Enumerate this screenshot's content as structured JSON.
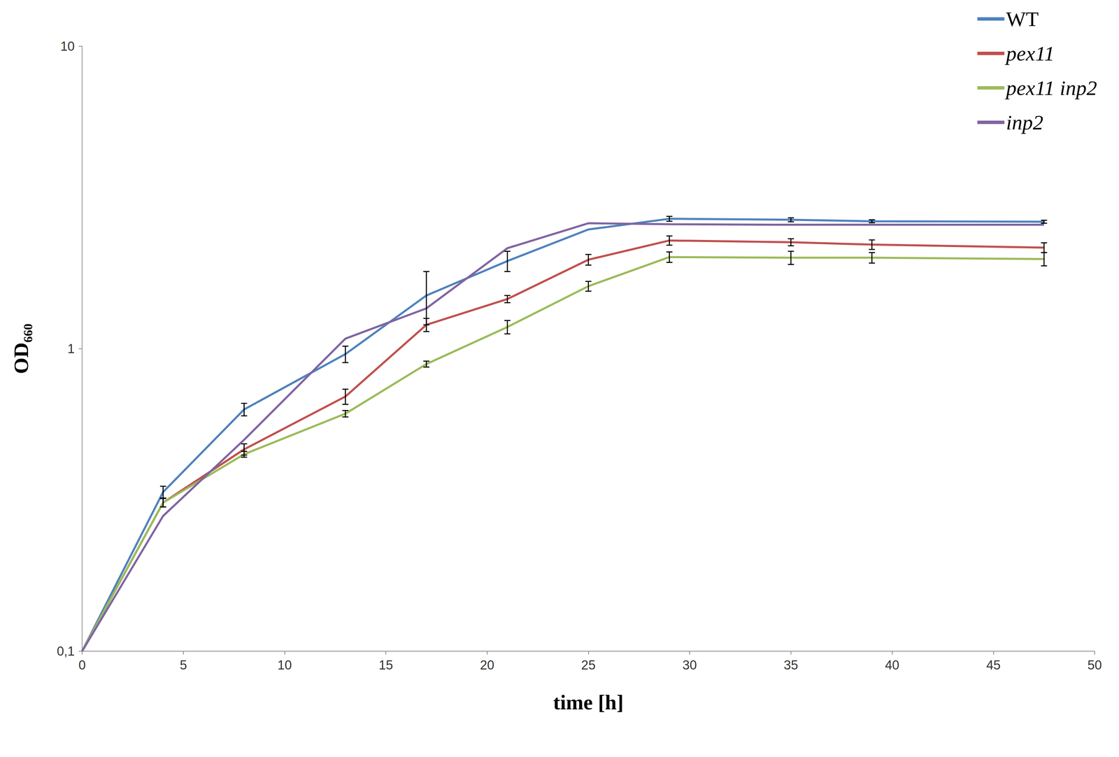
{
  "chart_data": {
    "type": "line",
    "x_label": "time [h]",
    "y_label": "OD₆₆₀",
    "x": [
      0,
      4,
      8,
      13,
      17,
      21,
      25,
      29,
      35,
      39,
      47.5
    ],
    "series": [
      {
        "name": "WT",
        "color": "#4f81bd",
        "values": [
          0.1,
          0.336,
          0.63,
          0.96,
          1.5,
          1.95,
          2.48,
          2.69,
          2.67,
          2.64,
          2.63
        ],
        "errors": [
          null,
          0.015,
          0.03,
          0.06,
          0.3,
          0.15,
          null,
          0.05,
          0.04,
          0.03,
          0.03
        ]
      },
      {
        "name": "pex11",
        "color": "#c0504d",
        "values": [
          0.1,
          0.31,
          0.465,
          0.695,
          1.2,
          1.46,
          1.97,
          2.28,
          2.25,
          2.21,
          2.16
        ],
        "errors": [
          null,
          0.01,
          0.02,
          0.04,
          0.06,
          0.04,
          0.08,
          0.08,
          0.06,
          0.08,
          0.08
        ]
      },
      {
        "name": "pex11 inp2",
        "color": "#9bbb59",
        "values": [
          0.1,
          0.31,
          0.448,
          0.61,
          0.89,
          1.18,
          1.61,
          2.01,
          2.0,
          2.0,
          1.98
        ],
        "errors": [
          null,
          0.01,
          0.01,
          0.015,
          0.02,
          0.06,
          0.06,
          0.08,
          0.1,
          0.08,
          0.1
        ]
      },
      {
        "name": "inp2",
        "color": "#8064a2",
        "values": [
          0.1,
          0.28,
          0.5,
          1.08,
          1.36,
          2.15,
          2.6,
          2.58,
          2.57,
          2.57,
          2.57
        ]
      }
    ],
    "xlim": [
      0,
      50
    ],
    "xticks": [
      0,
      5,
      10,
      15,
      20,
      25,
      30,
      35,
      40,
      45,
      50
    ],
    "ylim": [
      0.1,
      10
    ],
    "yticks": [
      {
        "value": 0.1,
        "label": "0,1"
      },
      1,
      10
    ],
    "log": "y",
    "grid": false,
    "legend": "top-right"
  }
}
